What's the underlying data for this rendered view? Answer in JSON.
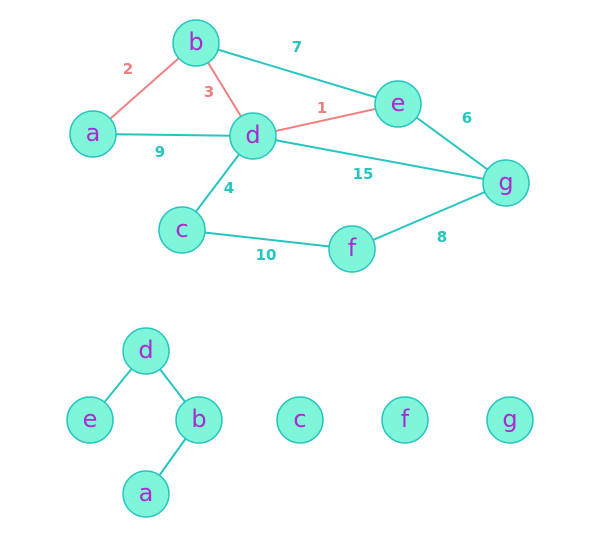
{
  "colors": {
    "node_fill": "#7ff5d9",
    "node_stroke": "#27c5c0",
    "node_text": "#a92ccf",
    "edge_default": "#27c5c0",
    "edge_highlight": "#f08080"
  },
  "graph": {
    "nodes": [
      {
        "id": "a",
        "label": "a"
      },
      {
        "id": "b",
        "label": "b"
      },
      {
        "id": "c",
        "label": "c"
      },
      {
        "id": "d",
        "label": "d"
      },
      {
        "id": "e",
        "label": "e"
      },
      {
        "id": "f",
        "label": "f"
      },
      {
        "id": "g",
        "label": "g"
      }
    ],
    "edges": [
      {
        "from": "a",
        "to": "b",
        "weight": "2",
        "highlighted": true
      },
      {
        "from": "b",
        "to": "d",
        "weight": "3",
        "highlighted": true
      },
      {
        "from": "d",
        "to": "e",
        "weight": "1",
        "highlighted": true
      },
      {
        "from": "b",
        "to": "e",
        "weight": "7",
        "highlighted": false
      },
      {
        "from": "a",
        "to": "d",
        "weight": "9",
        "highlighted": false
      },
      {
        "from": "d",
        "to": "c",
        "weight": "4",
        "highlighted": false
      },
      {
        "from": "d",
        "to": "g",
        "weight": "15",
        "highlighted": false
      },
      {
        "from": "e",
        "to": "g",
        "weight": "6",
        "highlighted": false
      },
      {
        "from": "c",
        "to": "f",
        "weight": "10",
        "highlighted": false
      },
      {
        "from": "f",
        "to": "g",
        "weight": "8",
        "highlighted": false
      }
    ]
  },
  "forest": {
    "nodes": [
      {
        "id": "d",
        "label": "d"
      },
      {
        "id": "e",
        "label": "e"
      },
      {
        "id": "b",
        "label": "b"
      },
      {
        "id": "a",
        "label": "a"
      },
      {
        "id": "c",
        "label": "c"
      },
      {
        "id": "f",
        "label": "f"
      },
      {
        "id": "g",
        "label": "g"
      }
    ],
    "edges": [
      {
        "from": "d",
        "to": "e"
      },
      {
        "from": "d",
        "to": "b"
      },
      {
        "from": "b",
        "to": "a"
      }
    ]
  }
}
